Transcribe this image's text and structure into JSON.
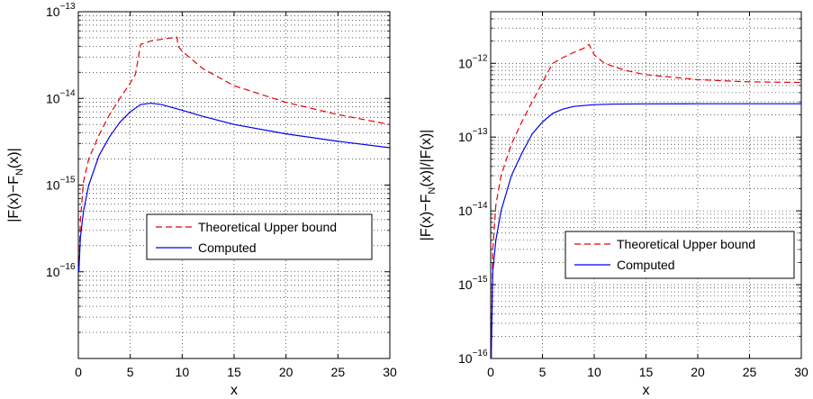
{
  "chart_data": [
    {
      "type": "line",
      "xlabel": "x",
      "ylabel": "|F(x)−F_N(x)|",
      "ylabel_parts": [
        "|F(x)−F",
        "N",
        "(x)|"
      ],
      "y_scale": "log",
      "xlim": [
        0,
        30
      ],
      "ylim": [
        1e-17,
        1e-13
      ],
      "grid": true,
      "legend_position": "middle-right",
      "x_ticks": [
        0,
        5,
        10,
        15,
        20,
        25,
        30
      ],
      "y_ticks": [
        {
          "value": 1e-16,
          "base": "10",
          "exp": "−16"
        },
        {
          "value": 1e-15,
          "base": "10",
          "exp": "−15"
        },
        {
          "value": 1e-14,
          "base": "10",
          "exp": "−14"
        },
        {
          "value": 1e-13,
          "base": "10",
          "exp": "−13"
        }
      ],
      "series": [
        {
          "name": "Theoretical Upper bound",
          "color": "#e8000b",
          "style": "dashed",
          "x": [
            0.05,
            0.2,
            0.5,
            1,
            2,
            3,
            4,
            5,
            5.5,
            6,
            7,
            8,
            9,
            9.5,
            9.6,
            10,
            12,
            15,
            20,
            25,
            30
          ],
          "y": [
            1e-16,
            4e-16,
            1.1e-15,
            2e-15,
            3.8e-15,
            6.5e-15,
            1e-14,
            1.5e-14,
            1.9e-14,
            4.2e-14,
            4.6e-14,
            4.8e-14,
            5e-14,
            5.1e-14,
            4e-14,
            3.5e-14,
            2.2e-14,
            1.4e-14,
            9e-15,
            6.5e-15,
            5e-15
          ]
        },
        {
          "name": "Computed",
          "color": "#0000ee",
          "style": "solid",
          "x": [
            0.05,
            0.2,
            0.5,
            1,
            2,
            3,
            4,
            5,
            6,
            7,
            8,
            10,
            12,
            15,
            20,
            25,
            30
          ],
          "y": [
            1e-16,
            2.5e-16,
            5e-16,
            1e-15,
            2.2e-15,
            3.6e-15,
            5.3e-15,
            7e-15,
            8.5e-15,
            8.8e-15,
            8.5e-15,
            7.3e-15,
            6.2e-15,
            5e-15,
            3.9e-15,
            3.2e-15,
            2.7e-15
          ]
        }
      ]
    },
    {
      "type": "line",
      "xlabel": "x",
      "ylabel": "|F(x)−F_N(x)|/|F(x)|",
      "ylabel_parts": [
        "|F(x)−F",
        "N",
        "(x)|/|F(x)|"
      ],
      "y_scale": "log",
      "xlim": [
        0,
        30
      ],
      "ylim": [
        1e-16,
        5e-12
      ],
      "grid": true,
      "legend_position": "middle-right",
      "x_ticks": [
        0,
        5,
        10,
        15,
        20,
        25,
        30
      ],
      "y_ticks": [
        {
          "value": 1e-16,
          "base": "10",
          "exp": "−16"
        },
        {
          "value": 1e-15,
          "base": "10",
          "exp": "−15"
        },
        {
          "value": 1e-14,
          "base": "10",
          "exp": "−14"
        },
        {
          "value": 1e-13,
          "base": "10",
          "exp": "−13"
        },
        {
          "value": 1e-12,
          "base": "10",
          "exp": "−12"
        }
      ],
      "series": [
        {
          "name": "Theoretical Upper bound",
          "color": "#e8000b",
          "style": "dashed",
          "x": [
            0.05,
            0.2,
            0.5,
            1,
            2,
            3,
            4,
            5,
            5.5,
            6,
            7,
            8,
            9,
            9.5,
            10,
            11,
            13,
            15,
            20,
            25,
            30
          ],
          "y": [
            1e-16,
            3e-15,
            1.2e-14,
            3e-14,
            8e-14,
            1.6e-13,
            3e-13,
            5.5e-13,
            7.5e-13,
            1e-12,
            1.2e-12,
            1.4e-12,
            1.6e-12,
            1.8e-12,
            1.3e-12,
            1e-12,
            8e-13,
            7e-13,
            6e-13,
            5.6e-13,
            5.5e-13
          ]
        },
        {
          "name": "Computed",
          "color": "#0000ee",
          "style": "solid",
          "x": [
            0.05,
            0.2,
            0.5,
            1,
            2,
            3,
            4,
            5,
            6,
            7,
            8,
            10,
            12,
            15,
            20,
            30
          ],
          "y": [
            1e-16,
            1.5e-15,
            4e-15,
            1e-14,
            3e-14,
            6e-14,
            1.1e-13,
            1.6e-13,
            2.1e-13,
            2.4e-13,
            2.6e-13,
            2.75e-13,
            2.8e-13,
            2.82e-13,
            2.83e-13,
            2.83e-13
          ]
        }
      ]
    }
  ]
}
